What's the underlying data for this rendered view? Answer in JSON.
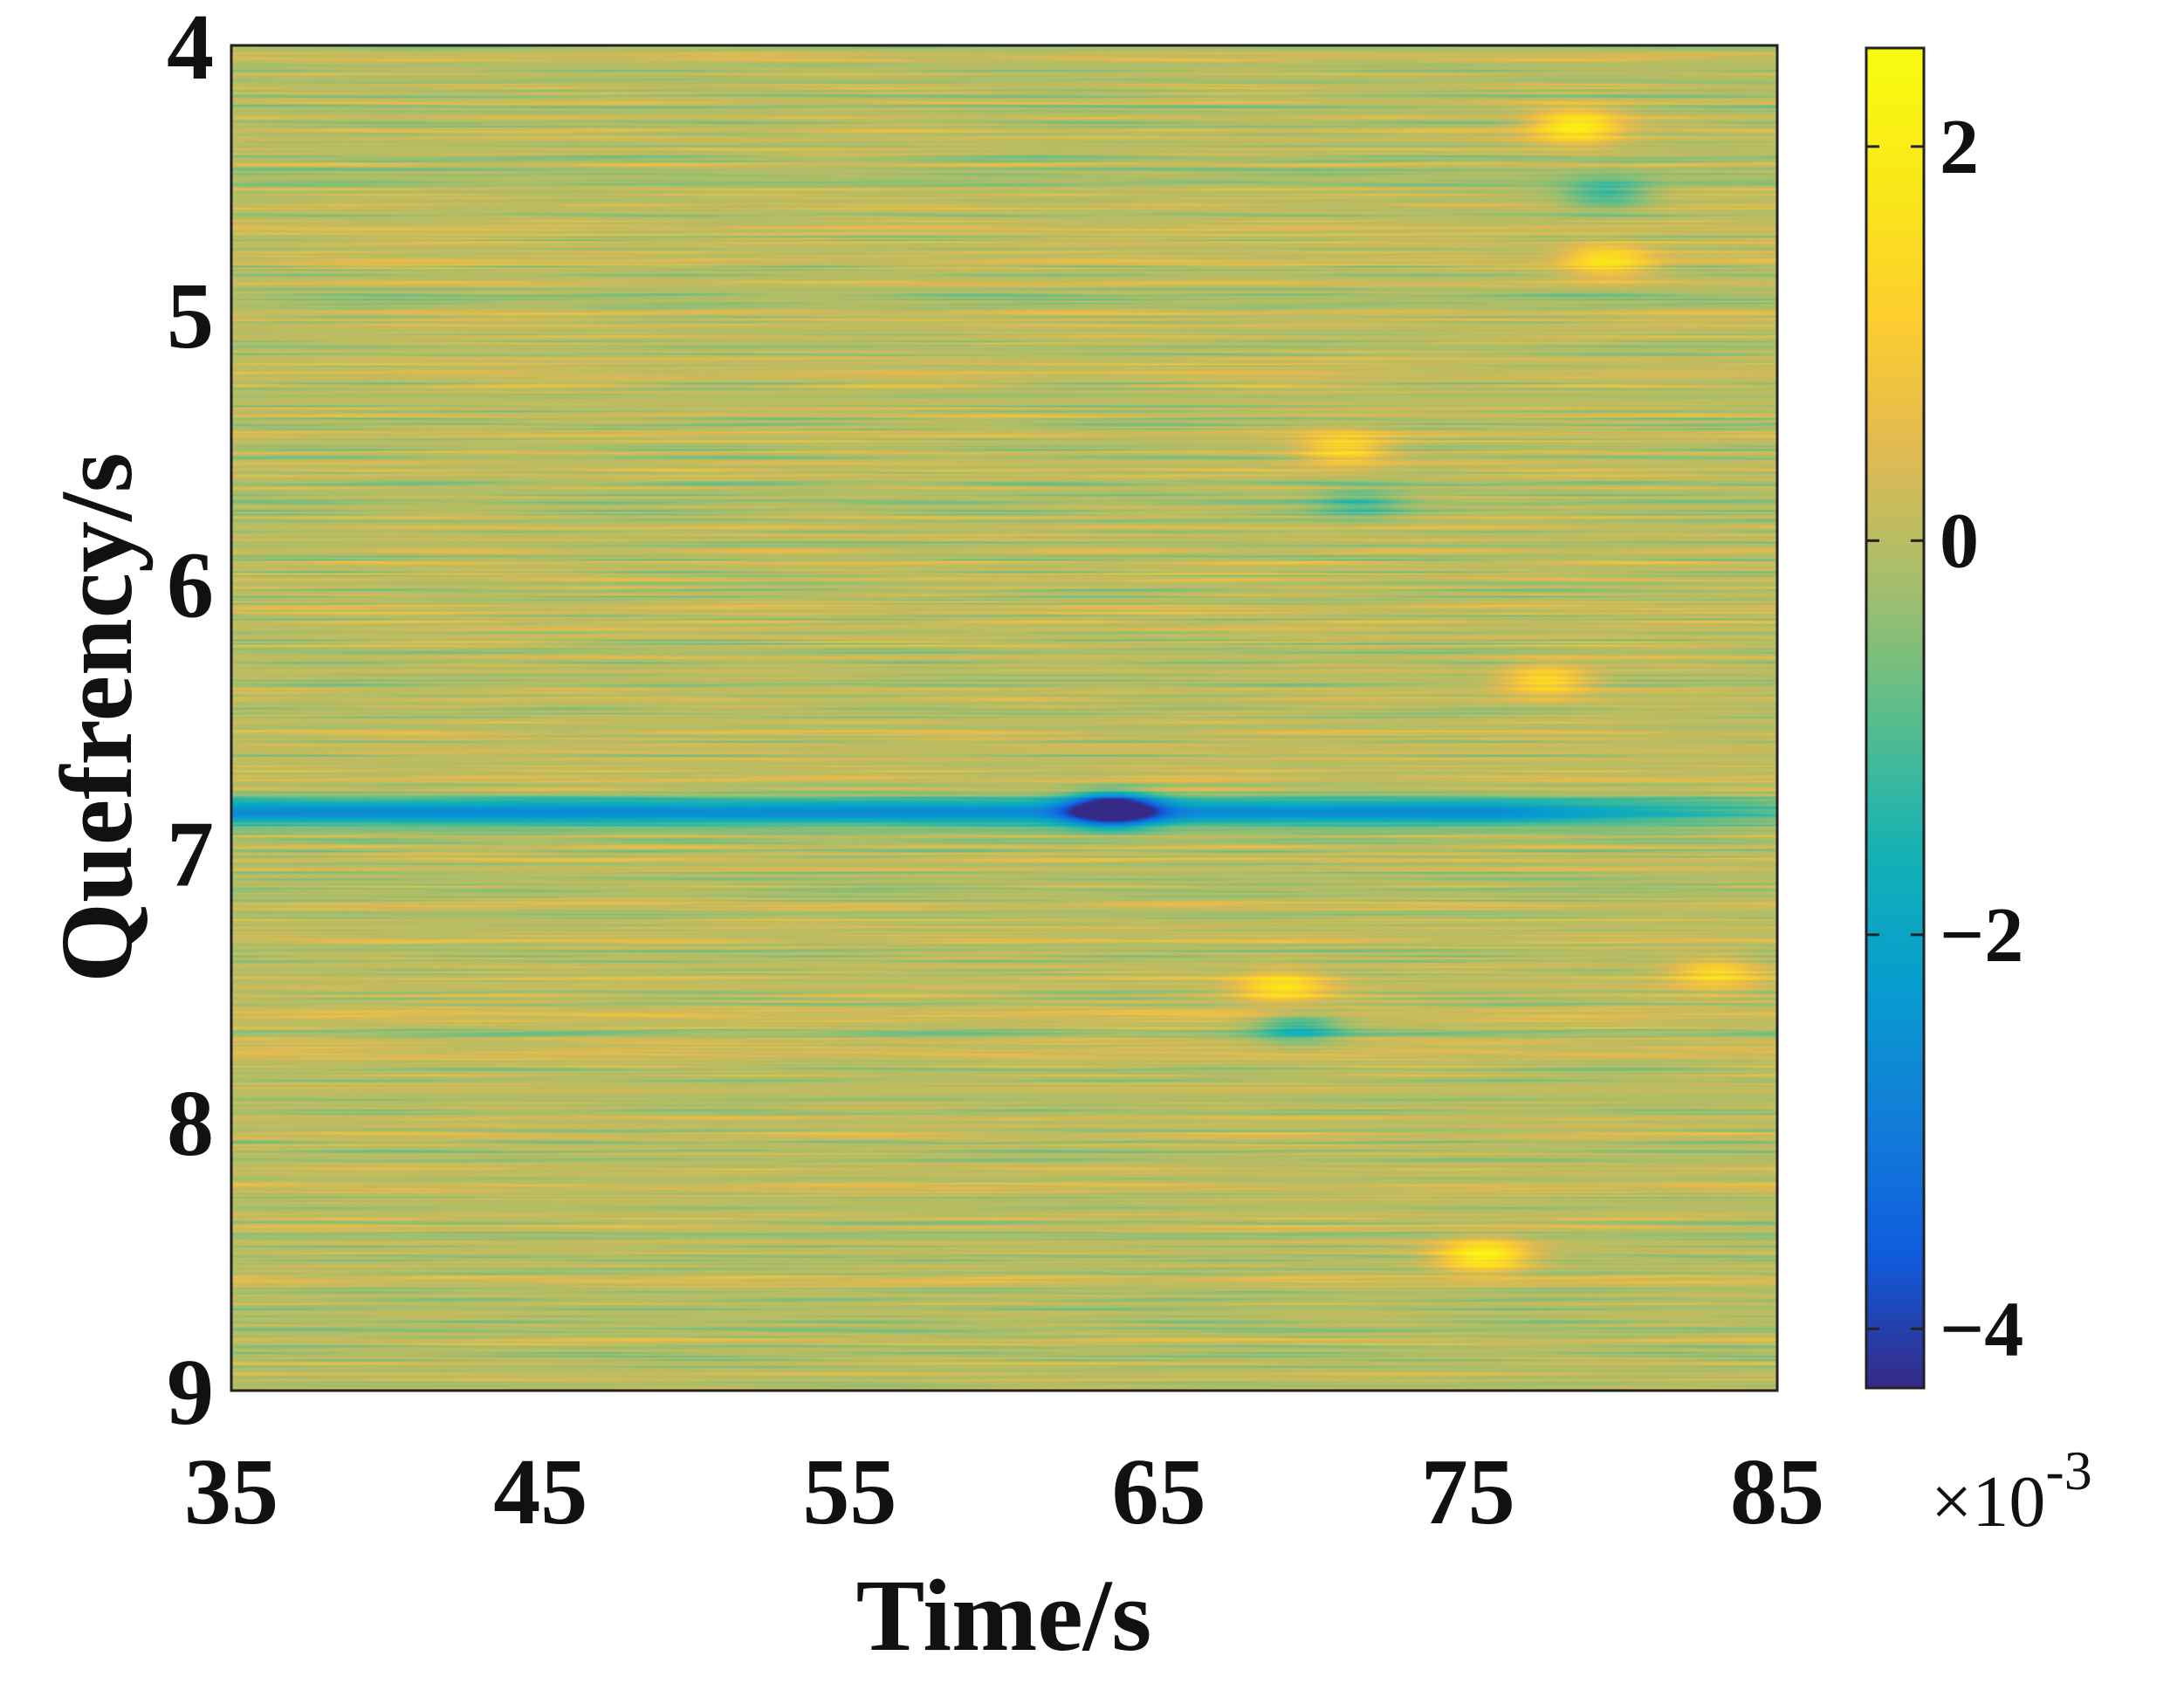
{
  "chart_data": {
    "type": "heatmap",
    "title": "",
    "xlabel": "Time/s",
    "ylabel": "Quefrency/s",
    "xlim": [
      35,
      85
    ],
    "ylim": [
      4,
      9
    ],
    "y_direction": "reversed",
    "x_ticks": [
      "35",
      "45",
      "55",
      "65",
      "75",
      "85"
    ],
    "y_ticks": [
      "4",
      "5",
      "6",
      "7",
      "8",
      "9"
    ],
    "colorbar": {
      "colormap": "parula",
      "range": [
        -4.3,
        2.5
      ],
      "ticks": [
        "2",
        "0",
        "−2",
        "−4"
      ],
      "tick_values": [
        2,
        0,
        -2,
        -4
      ],
      "multiplier_base": "×10",
      "multiplier_exponent": "-3"
    },
    "background_level": 0,
    "features": [
      {
        "kind": "band",
        "quefrency": 6.85,
        "time_range": [
          35,
          85
        ],
        "value": -2.6,
        "note": "persistent negative band"
      },
      {
        "kind": "spot",
        "quefrency": 6.84,
        "time": 63.5,
        "value": -4.2
      },
      {
        "kind": "spot",
        "quefrency": 4.3,
        "time": 78.5,
        "value": 2.0
      },
      {
        "kind": "spot",
        "quefrency": 4.8,
        "time": 79.5,
        "value": 1.6
      },
      {
        "kind": "spot",
        "quefrency": 5.5,
        "time": 71.0,
        "value": 1.4
      },
      {
        "kind": "spot",
        "quefrency": 6.36,
        "time": 77.5,
        "value": 1.5
      },
      {
        "kind": "spot",
        "quefrency": 7.5,
        "time": 69.0,
        "value": 1.6
      },
      {
        "kind": "spot",
        "quefrency": 7.45,
        "time": 83.0,
        "value": 1.3
      },
      {
        "kind": "spot",
        "quefrency": 8.5,
        "time": 75.5,
        "value": 2.2
      },
      {
        "kind": "spot",
        "quefrency": 4.55,
        "time": 79.5,
        "value": -1.2
      },
      {
        "kind": "spot",
        "quefrency": 7.65,
        "time": 69.5,
        "value": -1.3
      },
      {
        "kind": "spot",
        "quefrency": 5.7,
        "time": 71.5,
        "value": -0.9
      }
    ]
  }
}
